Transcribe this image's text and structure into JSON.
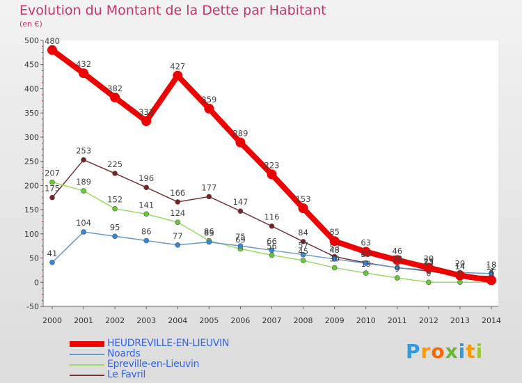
{
  "header": {
    "title": "Evolution du Montant de la Dette par Habitant",
    "unit": "(en €)"
  },
  "chart_data": {
    "type": "line",
    "x": [
      "2000",
      "2001",
      "2002",
      "2003",
      "2004",
      "2005",
      "2006",
      "2007",
      "2008",
      "2009",
      "2010",
      "2011",
      "2012",
      "2013",
      "2014"
    ],
    "ylim": [
      -50,
      500
    ],
    "yticks": [
      -50,
      0,
      50,
      100,
      150,
      200,
      250,
      300,
      350,
      400,
      450,
      500
    ],
    "grid": false,
    "series": [
      {
        "name": "HEUDREVILLE-EN-LIEUVIN",
        "color": "#ee0000",
        "marker": "#ee0000",
        "values": [
          480,
          432,
          382,
          333,
          427,
          359,
          289,
          223,
          153,
          85,
          63,
          46,
          30,
          14,
          4
        ],
        "labels": [
          "480",
          "432",
          "382",
          "333",
          "427",
          "359",
          "289",
          "223",
          "153",
          "85",
          "63",
          "46",
          "30",
          "14",
          "4"
        ]
      },
      {
        "name": "Noards",
        "color": "#6699cc",
        "marker": "#3388dd",
        "values": [
          41,
          104,
          95,
          86,
          77,
          83,
          75,
          66,
          57,
          48,
          39,
          30,
          25,
          20,
          18
        ],
        "labels": [
          "41",
          "104",
          "95",
          "86",
          "77",
          "83",
          "75",
          "66",
          "57",
          "48",
          "39",
          "30",
          "25",
          "20",
          "18"
        ]
      },
      {
        "name": "Epreville-en-Lieuvin",
        "color": "#99dd66",
        "marker": "#66cc33",
        "values": [
          207,
          189,
          152,
          141,
          124,
          86,
          69,
          56,
          45,
          30,
          19,
          9,
          0,
          0,
          0
        ],
        "labels": [
          "207",
          "189",
          "152",
          "141",
          "124",
          "86",
          "69",
          "56",
          "45",
          "30",
          "19",
          "9",
          "0",
          "0",
          "0"
        ]
      },
      {
        "name": "Le Favril",
        "color": "#773333",
        "marker": "#772222",
        "values": [
          175,
          253,
          225,
          196,
          166,
          177,
          147,
          116,
          84,
          53,
          40,
          30,
          23,
          14,
          12
        ],
        "labels": [
          "175",
          "253",
          "225",
          "196",
          "166",
          "177",
          "147",
          "116",
          "84",
          "53",
          "40",
          "30",
          "23",
          "14",
          "12"
        ]
      }
    ]
  },
  "legend": {
    "items": [
      {
        "label": "HEUDREVILLE-EN-LIEUVIN",
        "color": "#ee0000"
      },
      {
        "label": "Noards",
        "color": "#6699cc"
      },
      {
        "label": "Epreville-en-Lieuvin",
        "color": "#99dd66"
      },
      {
        "label": "Le Favril",
        "color": "#773333"
      }
    ]
  },
  "logo": {
    "letters": [
      "P",
      "r",
      "o",
      "x",
      "i",
      "t",
      "i"
    ],
    "colors": [
      "#3399dd",
      "#ff9900",
      "#ff6600",
      "#66bb33",
      "#3399dd",
      "#ff9900",
      "#99cc33"
    ]
  }
}
